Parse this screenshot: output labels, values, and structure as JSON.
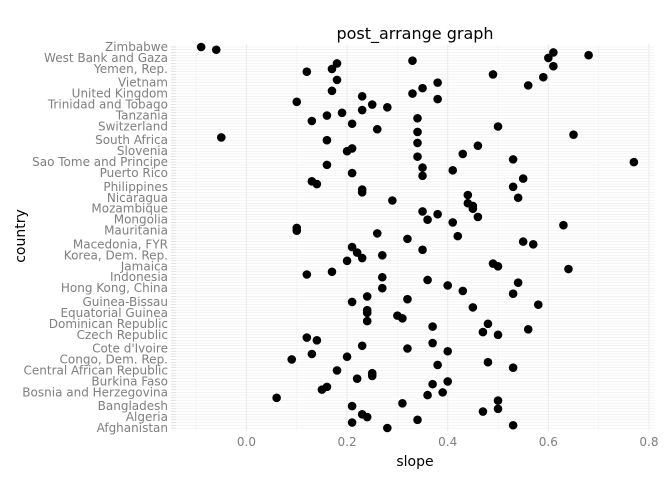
{
  "chart_data": {
    "type": "scatter",
    "title": "post_arrange graph",
    "xlabel": "slope",
    "ylabel": "country",
    "xlim": [
      -0.14,
      0.81
    ],
    "x_ticks": [
      "0.0",
      "0.2",
      "0.4",
      "0.6",
      "0.8"
    ],
    "x_tick_values": [
      0.0,
      0.2,
      0.4,
      0.6,
      0.8
    ],
    "grid": true,
    "legend": "none",
    "marker_color": "#000000",
    "labeled_countries": [
      "Zimbabwe",
      "West Bank and Gaza",
      "Yemen, Rep.",
      "Vietnam",
      "United Kingdom",
      "Trinidad and Tobago",
      "Tanzania",
      "Switzerland",
      "South Africa",
      "Slovenia",
      "Sao Tome and Principe",
      "Puerto Rico",
      "Philippines",
      "Nicaragua",
      "Mozambique",
      "Mongolia",
      "Mauritania",
      "Macedonia, FYR",
      "Korea, Dem. Rep.",
      "Jamaica",
      "Indonesia",
      "Hong Kong, China",
      "Guinea-Bissau",
      "Equatorial Guinea",
      "Dominican Republic",
      "Czech Republic",
      "Cote d'Ivoire",
      "Congo, Dem. Rep.",
      "Central African Republic",
      "Burkina Faso",
      "Bosnia and Herzegovina",
      "Bangladesh",
      "Algeria",
      "Afghanistan"
    ],
    "series": [
      {
        "x": [
          0.28,
          0.53,
          0.21,
          0.34,
          0.24,
          0.23,
          0.47,
          0.5,
          0.21,
          0.31,
          0.5,
          0.06,
          0.36,
          0.39,
          0.15,
          0.16,
          0.37,
          0.4,
          0.22,
          0.25,
          0.25,
          0.18,
          0.53,
          0.38,
          0.48,
          0.09,
          0.2,
          0.13,
          0.4,
          0.32,
          0.23,
          0.37,
          0.14,
          0.12,
          0.5,
          0.47,
          0.56,
          0.37,
          0.48,
          0.24,
          0.31,
          0.3,
          0.24,
          0.24,
          0.45,
          0.58,
          0.21,
          0.32,
          0.24,
          0.53,
          0.43,
          0.27,
          0.4,
          0.54,
          0.36,
          0.27,
          0.12,
          0.17,
          0.64,
          0.5,
          0.49,
          0.2,
          0.23,
          0.27,
          0.22,
          0.35,
          0.21,
          0.57,
          0.55,
          0.32,
          0.42,
          0.26,
          0.1,
          0.1,
          0.63,
          0.41,
          0.36,
          0.46,
          0.38,
          0.35,
          0.45,
          0.45,
          0.44,
          0.29,
          0.54,
          0.44,
          0.23,
          0.23,
          0.53,
          0.14,
          0.13,
          0.55,
          0.35,
          0.21,
          0.41,
          0.35,
          0.16,
          0.77,
          0.53,
          0.34,
          0.43,
          0.2,
          0.21,
          0.46,
          0.34,
          0.16,
          -0.05,
          0.65,
          0.34,
          0.26,
          0.5,
          0.21,
          0.13,
          0.34,
          0.16,
          0.19,
          0.23,
          0.28,
          0.25,
          0.1,
          0.38,
          0.23,
          0.33,
          0.17,
          0.35,
          0.56,
          0.38,
          0.18,
          0.59,
          0.49,
          0.12,
          0.17,
          0.61,
          0.18,
          0.33,
          0.6,
          0.68,
          0.61,
          -0.06,
          -0.09
        ]
      }
    ]
  }
}
